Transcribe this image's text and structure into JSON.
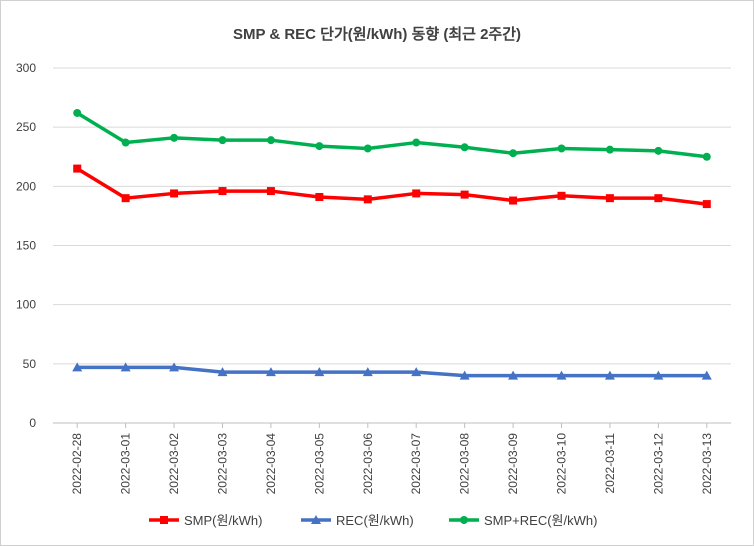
{
  "chart_data": {
    "type": "line",
    "title": "SMP & REC 단가(원/kWh) 동향 (최근 2주간)",
    "xlabel": "",
    "ylabel": "",
    "ylim": [
      0,
      300
    ],
    "yticks": [
      0,
      50,
      100,
      150,
      200,
      250,
      300
    ],
    "grid": true,
    "legend_position": "bottom",
    "categories": [
      "2022-02-28",
      "2022-03-01",
      "2022-03-02",
      "2022-03-03",
      "2022-03-04",
      "2022-03-05",
      "2022-03-06",
      "2022-03-07",
      "2022-03-08",
      "2022-03-09",
      "2022-03-10",
      "2022-03-11",
      "2022-03-12",
      "2022-03-13"
    ],
    "series": [
      {
        "name": "SMP(원/kWh)",
        "color": "#ff0000",
        "marker": "square",
        "values": [
          215,
          190,
          194,
          196,
          196,
          191,
          189,
          194,
          193,
          188,
          192,
          190,
          190,
          185
        ]
      },
      {
        "name": "REC(원/kWh)",
        "color": "#4472c4",
        "marker": "triangle",
        "values": [
          47,
          47,
          47,
          43,
          43,
          43,
          43,
          43,
          40,
          40,
          40,
          40,
          40,
          40
        ]
      },
      {
        "name": "SMP+REC(원/kWh)",
        "color": "#00b050",
        "marker": "circle",
        "values": [
          262,
          237,
          241,
          239,
          239,
          234,
          232,
          237,
          233,
          228,
          232,
          231,
          230,
          225
        ]
      }
    ]
  }
}
